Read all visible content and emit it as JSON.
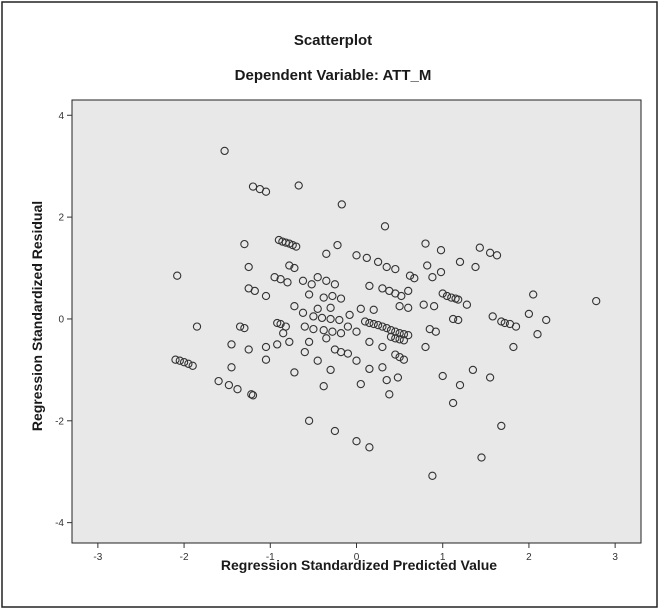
{
  "chart_data": {
    "type": "scatter",
    "title": "Scatterplot",
    "subtitle": "Dependent Variable: ATT_M",
    "xlabel": "Regression Standardized Predicted Value",
    "ylabel": "Regression Standardized Residual",
    "xlim": [
      -3.3,
      3.3
    ],
    "ylim": [
      -4.4,
      4.3
    ],
    "xticks": [
      -3,
      -2,
      -1,
      0,
      1,
      2,
      3
    ],
    "yticks": [
      -4,
      -2,
      0,
      2,
      4
    ],
    "grid": false,
    "legend": "none",
    "colors": {
      "plot_background": "#e8e8e8",
      "marker_stroke": "#333333",
      "border": "#222222"
    },
    "points": [
      [
        -1.53,
        3.3
      ],
      [
        -1.2,
        2.6
      ],
      [
        -1.12,
        2.55
      ],
      [
        -1.05,
        2.5
      ],
      [
        -0.67,
        2.62
      ],
      [
        -0.17,
        2.25
      ],
      [
        0.33,
        1.82
      ],
      [
        -0.9,
        1.55
      ],
      [
        -0.86,
        1.52
      ],
      [
        -0.82,
        1.5
      ],
      [
        -0.78,
        1.48
      ],
      [
        -0.74,
        1.45
      ],
      [
        -0.7,
        1.42
      ],
      [
        -1.3,
        1.47
      ],
      [
        -0.22,
        1.45
      ],
      [
        0.8,
        1.48
      ],
      [
        0.98,
        1.35
      ],
      [
        1.43,
        1.4
      ],
      [
        1.55,
        1.3
      ],
      [
        1.63,
        1.25
      ],
      [
        -0.35,
        1.28
      ],
      [
        0.0,
        1.25
      ],
      [
        0.12,
        1.2
      ],
      [
        0.25,
        1.12
      ],
      [
        0.35,
        1.02
      ],
      [
        0.45,
        0.98
      ],
      [
        -0.78,
        1.05
      ],
      [
        -0.72,
        1.0
      ],
      [
        1.2,
        1.12
      ],
      [
        1.38,
        1.02
      ],
      [
        0.82,
        1.05
      ],
      [
        0.98,
        0.92
      ],
      [
        -1.25,
        1.02
      ],
      [
        -0.95,
        0.82
      ],
      [
        -0.88,
        0.78
      ],
      [
        -0.8,
        0.72
      ],
      [
        -0.62,
        0.75
      ],
      [
        -0.52,
        0.68
      ],
      [
        -0.35,
        0.75
      ],
      [
        -0.25,
        0.68
      ],
      [
        -0.45,
        0.82
      ],
      [
        0.62,
        0.85
      ],
      [
        0.67,
        0.8
      ],
      [
        0.88,
        0.82
      ],
      [
        0.15,
        0.65
      ],
      [
        0.3,
        0.6
      ],
      [
        0.38,
        0.55
      ],
      [
        0.45,
        0.5
      ],
      [
        0.52,
        0.45
      ],
      [
        0.6,
        0.55
      ],
      [
        1.0,
        0.5
      ],
      [
        1.05,
        0.45
      ],
      [
        1.1,
        0.42
      ],
      [
        1.15,
        0.4
      ],
      [
        1.18,
        0.38
      ],
      [
        -1.25,
        0.6
      ],
      [
        -1.18,
        0.55
      ],
      [
        -1.05,
        0.45
      ],
      [
        -0.55,
        0.48
      ],
      [
        -0.38,
        0.42
      ],
      [
        -0.28,
        0.45
      ],
      [
        -0.18,
        0.4
      ],
      [
        -0.72,
        0.25
      ],
      [
        -0.45,
        0.2
      ],
      [
        -0.3,
        0.22
      ],
      [
        0.05,
        0.2
      ],
      [
        0.2,
        0.18
      ],
      [
        0.5,
        0.25
      ],
      [
        0.6,
        0.22
      ],
      [
        0.78,
        0.28
      ],
      [
        0.9,
        0.25
      ],
      [
        1.28,
        0.28
      ],
      [
        2.05,
        0.48
      ],
      [
        1.58,
        0.05
      ],
      [
        2.0,
        0.1
      ],
      [
        2.78,
        0.35
      ],
      [
        -0.62,
        0.12
      ],
      [
        -0.5,
        0.05
      ],
      [
        -0.4,
        0.02
      ],
      [
        -0.3,
        0.0
      ],
      [
        -0.2,
        -0.02
      ],
      [
        -0.08,
        0.08
      ],
      [
        1.12,
        0.0
      ],
      [
        1.18,
        -0.02
      ],
      [
        1.68,
        -0.05
      ],
      [
        1.72,
        -0.08
      ],
      [
        1.78,
        -0.1
      ],
      [
        1.85,
        -0.15
      ],
      [
        2.2,
        -0.02
      ],
      [
        -2.08,
        0.85
      ],
      [
        -1.85,
        -0.15
      ],
      [
        -1.35,
        -0.15
      ],
      [
        -1.3,
        -0.18
      ],
      [
        -0.92,
        -0.08
      ],
      [
        -0.88,
        -0.1
      ],
      [
        -0.82,
        -0.15
      ],
      [
        -0.6,
        -0.15
      ],
      [
        -0.5,
        -0.2
      ],
      [
        -0.38,
        -0.22
      ],
      [
        -0.28,
        -0.25
      ],
      [
        -0.18,
        -0.28
      ],
      [
        -0.1,
        -0.15
      ],
      [
        0.0,
        -0.25
      ],
      [
        0.1,
        -0.05
      ],
      [
        0.15,
        -0.08
      ],
      [
        0.2,
        -0.1
      ],
      [
        0.25,
        -0.12
      ],
      [
        0.3,
        -0.15
      ],
      [
        0.35,
        -0.18
      ],
      [
        0.4,
        -0.22
      ],
      [
        0.45,
        -0.25
      ],
      [
        0.5,
        -0.28
      ],
      [
        0.55,
        -0.3
      ],
      [
        0.6,
        -0.32
      ],
      [
        0.4,
        -0.35
      ],
      [
        0.45,
        -0.38
      ],
      [
        0.5,
        -0.4
      ],
      [
        0.55,
        -0.42
      ],
      [
        0.85,
        -0.2
      ],
      [
        0.92,
        -0.25
      ],
      [
        -0.85,
        -0.28
      ],
      [
        -0.55,
        -0.45
      ],
      [
        -0.35,
        -0.38
      ],
      [
        0.15,
        -0.45
      ],
      [
        0.3,
        -0.55
      ],
      [
        2.1,
        -0.3
      ],
      [
        -1.45,
        -0.5
      ],
      [
        -1.25,
        -0.6
      ],
      [
        -1.05,
        -0.55
      ],
      [
        -0.92,
        -0.5
      ],
      [
        -0.78,
        -0.45
      ],
      [
        -0.6,
        -0.65
      ],
      [
        -0.25,
        -0.6
      ],
      [
        -0.18,
        -0.65
      ],
      [
        -0.1,
        -0.68
      ],
      [
        0.45,
        -0.7
      ],
      [
        0.5,
        -0.75
      ],
      [
        0.55,
        -0.8
      ],
      [
        0.8,
        -0.55
      ],
      [
        1.82,
        -0.55
      ],
      [
        -2.1,
        -0.8
      ],
      [
        -2.05,
        -0.82
      ],
      [
        -2.0,
        -0.85
      ],
      [
        -1.95,
        -0.88
      ],
      [
        -1.9,
        -0.92
      ],
      [
        -1.45,
        -0.95
      ],
      [
        -1.05,
        -0.8
      ],
      [
        -0.45,
        -0.82
      ],
      [
        0.0,
        -0.82
      ],
      [
        0.15,
        -0.98
      ],
      [
        0.3,
        -0.95
      ],
      [
        -0.72,
        -1.05
      ],
      [
        -0.3,
        -1.0
      ],
      [
        0.35,
        -1.2
      ],
      [
        0.48,
        -1.15
      ],
      [
        1.0,
        -1.12
      ],
      [
        1.35,
        -1.0
      ],
      [
        1.55,
        -1.15
      ],
      [
        -1.6,
        -1.22
      ],
      [
        -1.48,
        -1.3
      ],
      [
        -1.38,
        -1.38
      ],
      [
        -1.22,
        -1.48
      ],
      [
        -1.2,
        -1.5
      ],
      [
        -0.38,
        -1.32
      ],
      [
        0.05,
        -1.28
      ],
      [
        0.38,
        -1.48
      ],
      [
        1.2,
        -1.3
      ],
      [
        1.12,
        -1.65
      ],
      [
        -0.55,
        -2.0
      ],
      [
        -0.25,
        -2.2
      ],
      [
        0.0,
        -2.4
      ],
      [
        0.15,
        -2.52
      ],
      [
        1.68,
        -2.1
      ],
      [
        1.45,
        -2.72
      ],
      [
        0.88,
        -3.08
      ]
    ]
  }
}
